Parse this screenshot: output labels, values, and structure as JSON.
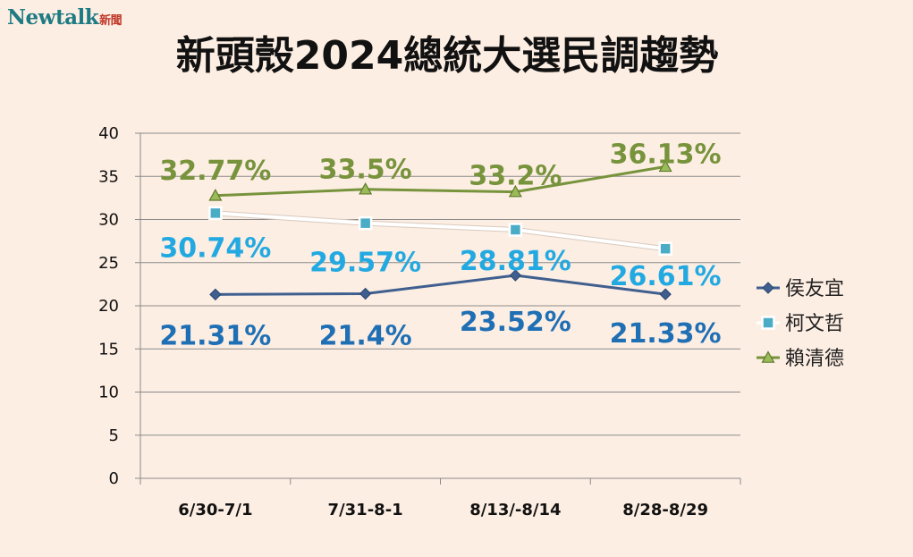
{
  "brand": {
    "name": "Newtalk",
    "sub": "新聞"
  },
  "chart_data": {
    "type": "line",
    "title": "新頭殼2024總統大選民調趨勢",
    "categories": [
      "6/30-7/1",
      "7/31-8-1",
      "8/13/-8/14",
      "8/28-8/29"
    ],
    "ylim": [
      0,
      40
    ],
    "yticks": [
      0,
      5,
      10,
      15,
      20,
      25,
      30,
      35,
      40
    ],
    "grid": true,
    "legend_position": "right",
    "series": [
      {
        "name": "侯友宜",
        "values": [
          21.31,
          21.4,
          23.52,
          21.33
        ],
        "labels": [
          "21.31%",
          "21.4%",
          "23.52%",
          "21.33%"
        ],
        "line_color": "#3f5f8f",
        "label_color": "#1f6fb5",
        "marker": "diamond"
      },
      {
        "name": "柯文哲",
        "values": [
          30.74,
          29.57,
          28.81,
          26.61
        ],
        "labels": [
          "30.74%",
          "29.57%",
          "28.81%",
          "26.61%"
        ],
        "line_color": "#ffffff",
        "label_color": "#23a9e1",
        "marker": "square"
      },
      {
        "name": "賴清德",
        "values": [
          32.77,
          33.5,
          33.2,
          36.13
        ],
        "labels": [
          "32.77%",
          "33.5%",
          "33.2%",
          "36.13%"
        ],
        "line_color": "#77933c",
        "label_color": "#77933c",
        "marker": "triangle"
      }
    ]
  }
}
